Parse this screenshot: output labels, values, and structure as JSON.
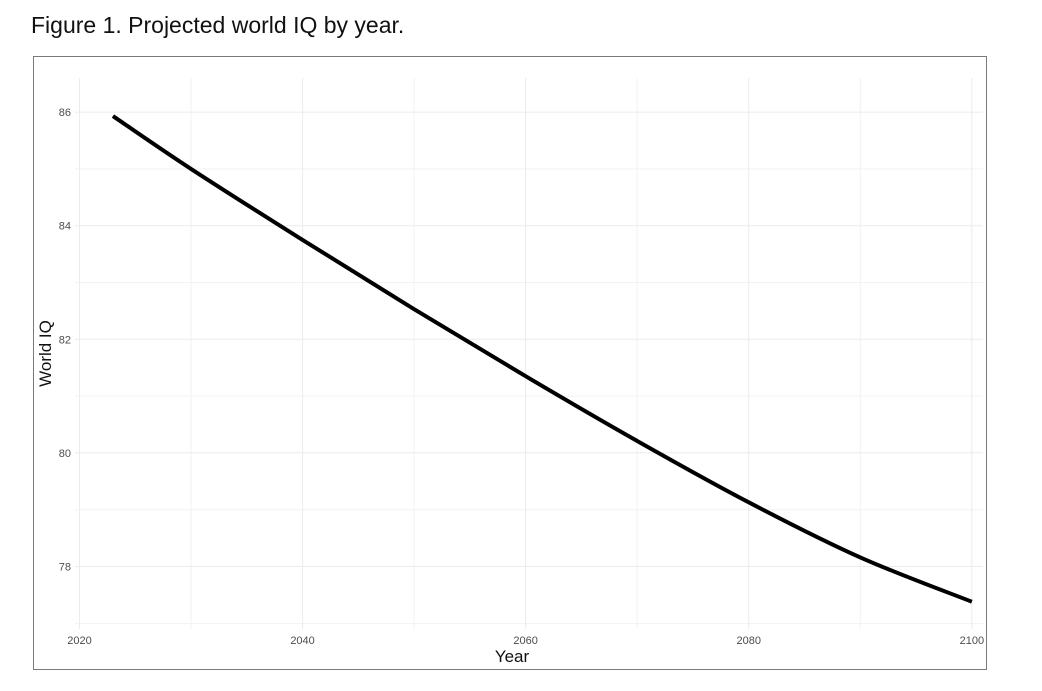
{
  "figure": {
    "caption": "Figure 1. Projected world IQ by year."
  },
  "chart_data": {
    "type": "line",
    "title": "Figure 1. Projected world IQ by year.",
    "xlabel": "Year",
    "ylabel": "World IQ",
    "xlim": [
      2019.6,
      2101
    ],
    "ylim": [
      76.9,
      86.6
    ],
    "x_ticks": [
      2020,
      2040,
      2060,
      2080,
      2100
    ],
    "x_minor_ticks": [
      2030,
      2050,
      2070,
      2090
    ],
    "y_ticks": [
      78,
      80,
      82,
      84,
      86
    ],
    "y_minor_ticks": [
      77,
      79,
      81,
      83,
      85
    ],
    "grid": true,
    "legend": "none",
    "line_color": "#000000",
    "grid_color": "#ebebeb",
    "series": [
      {
        "name": "World IQ",
        "x": [
          2023,
          2030,
          2040,
          2050,
          2060,
          2070,
          2080,
          2090,
          2100
        ],
        "y": [
          85.93,
          85.0,
          83.75,
          82.53,
          81.35,
          80.21,
          79.13,
          78.16,
          77.38
        ]
      }
    ]
  }
}
